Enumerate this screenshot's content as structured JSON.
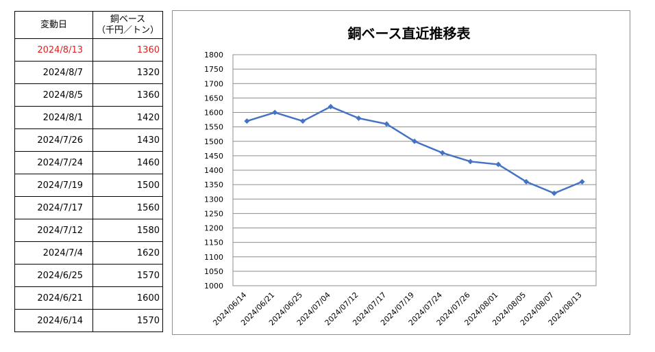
{
  "table": {
    "header_date": "変動日",
    "header_price_line1": "銅ベース",
    "header_price_line2": "（千円／トン）",
    "highlight_color": "#e02020",
    "rows": [
      {
        "date": "2024/8/13",
        "price": "1360"
      },
      {
        "date": "2024/8/7",
        "price": "1320"
      },
      {
        "date": "2024/8/5",
        "price": "1360"
      },
      {
        "date": "2024/8/1",
        "price": "1420"
      },
      {
        "date": "2024/7/26",
        "price": "1430"
      },
      {
        "date": "2024/7/24",
        "price": "1460"
      },
      {
        "date": "2024/7/19",
        "price": "1500"
      },
      {
        "date": "2024/7/17",
        "price": "1560"
      },
      {
        "date": "2024/7/12",
        "price": "1580"
      },
      {
        "date": "2024/7/4",
        "price": "1620"
      },
      {
        "date": "2024/6/25",
        "price": "1570"
      },
      {
        "date": "2024/6/21",
        "price": "1600"
      },
      {
        "date": "2024/6/14",
        "price": "1570"
      }
    ]
  },
  "chart_data": {
    "type": "line",
    "title": "銅ベース直近推移表",
    "xlabel": "",
    "ylabel": "",
    "categories": [
      "2024/06/14",
      "2024/06/21",
      "2024/06/25",
      "2024/07/04",
      "2024/07/12",
      "2024/07/17",
      "2024/07/19",
      "2024/07/24",
      "2024/07/26",
      "2024/08/01",
      "2024/08/05",
      "2024/08/07",
      "2024/08/13"
    ],
    "series": [
      {
        "values": [
          1570,
          1600,
          1570,
          1620,
          1580,
          1560,
          1500,
          1460,
          1430,
          1420,
          1360,
          1320,
          1360
        ],
        "color": "#4472c4"
      }
    ],
    "ylim": [
      1000,
      1800
    ],
    "yticks": [
      1000,
      1050,
      1100,
      1150,
      1200,
      1250,
      1300,
      1350,
      1400,
      1450,
      1500,
      1550,
      1600,
      1650,
      1700,
      1750,
      1800
    ],
    "grid": "horizontal",
    "legend": "none"
  }
}
